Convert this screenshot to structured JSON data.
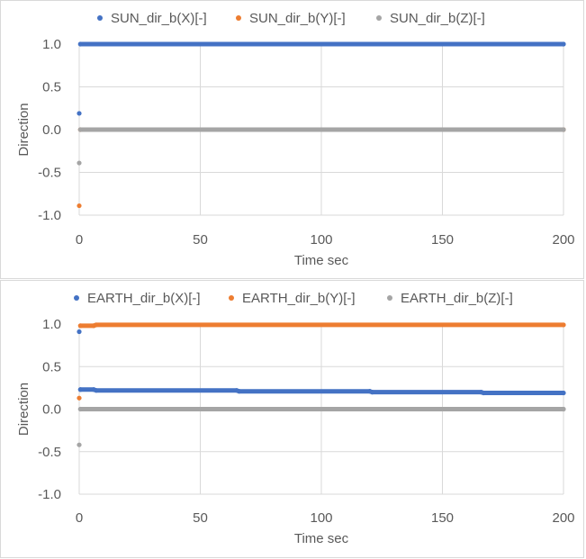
{
  "chart_data": [
    {
      "type": "scatter",
      "xlabel": "Time sec",
      "ylabel": "Direction",
      "xlim": [
        0,
        200
      ],
      "ylim": [
        -1.0,
        1.0
      ],
      "xticks": [
        "0",
        "50",
        "100",
        "150",
        "200"
      ],
      "yticks": [
        "1.0",
        "0.5",
        "0.0",
        "-0.5",
        "-1.0"
      ],
      "grid": true,
      "legend_position": "top",
      "series": [
        {
          "name": "SUN_dir_b(X)[-]",
          "color": "#4472C4",
          "points": [
            [
              0,
              0.19
            ],
            [
              0.5,
              1.0
            ],
            [
              200,
              1.0
            ]
          ]
        },
        {
          "name": "SUN_dir_b(Y)[-]",
          "color": "#ED7D31",
          "points": [
            [
              0,
              -0.89
            ],
            [
              0.5,
              0.0
            ],
            [
              200,
              0.0
            ]
          ]
        },
        {
          "name": "SUN_dir_b(Z)[-]",
          "color": "#A5A5A5",
          "points": [
            [
              0,
              -0.39
            ],
            [
              0.5,
              0.0
            ],
            [
              200,
              0.0
            ]
          ]
        }
      ]
    },
    {
      "type": "scatter",
      "xlabel": "Time sec",
      "ylabel": "Direction",
      "xlim": [
        0,
        200
      ],
      "ylim": [
        -1.0,
        1.0
      ],
      "xticks": [
        "0",
        "50",
        "100",
        "150",
        "200"
      ],
      "yticks": [
        "1.0",
        "0.5",
        "0.0",
        "-0.5",
        "-1.0"
      ],
      "grid": true,
      "legend_position": "top",
      "series": [
        {
          "name": "EARTH_dir_b(X)[-]",
          "color": "#4472C4",
          "points": [
            [
              0,
              0.91
            ],
            [
              0.5,
              0.23
            ],
            [
              6,
              0.23
            ],
            [
              7,
              0.22
            ],
            [
              65,
              0.22
            ],
            [
              66,
              0.21
            ],
            [
              120,
              0.21
            ],
            [
              121,
              0.2
            ],
            [
              166,
              0.2
            ],
            [
              167,
              0.19
            ],
            [
              200,
              0.19
            ]
          ]
        },
        {
          "name": "EARTH_dir_b(Y)[-]",
          "color": "#ED7D31",
          "points": [
            [
              0,
              0.13
            ],
            [
              0.5,
              0.98
            ],
            [
              6,
              0.98
            ],
            [
              7,
              0.99
            ],
            [
              200,
              0.99
            ]
          ]
        },
        {
          "name": "EARTH_dir_b(Z)[-]",
          "color": "#A5A5A5",
          "points": [
            [
              0,
              -0.42
            ],
            [
              0.5,
              0.0
            ],
            [
              200,
              0.0
            ]
          ]
        }
      ]
    }
  ]
}
